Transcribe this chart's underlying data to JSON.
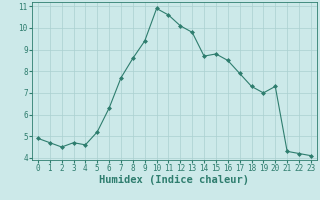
{
  "x": [
    0,
    1,
    2,
    3,
    4,
    5,
    6,
    7,
    8,
    9,
    10,
    11,
    12,
    13,
    14,
    15,
    16,
    17,
    18,
    19,
    20,
    21,
    22,
    23
  ],
  "y": [
    4.9,
    4.7,
    4.5,
    4.7,
    4.6,
    5.2,
    6.3,
    7.7,
    8.6,
    9.4,
    10.9,
    10.6,
    10.1,
    9.8,
    8.7,
    8.8,
    8.5,
    7.9,
    7.3,
    7.0,
    7.3,
    4.3,
    4.2,
    4.1
  ],
  "line_color": "#2e7d6e",
  "marker": "D",
  "marker_size": 2.0,
  "bg_color": "#cce9e9",
  "grid_color": "#aad0d0",
  "xlabel": "Humidex (Indice chaleur)",
  "ylim": [
    4,
    11
  ],
  "xlim": [
    -0.5,
    23.5
  ],
  "yticks": [
    4,
    5,
    6,
    7,
    8,
    9,
    10,
    11
  ],
  "xticks": [
    0,
    1,
    2,
    3,
    4,
    5,
    6,
    7,
    8,
    9,
    10,
    11,
    12,
    13,
    14,
    15,
    16,
    17,
    18,
    19,
    20,
    21,
    22,
    23
  ],
  "tick_fontsize": 5.5,
  "xlabel_fontsize": 7.5,
  "label_color": "#2e7d6e"
}
